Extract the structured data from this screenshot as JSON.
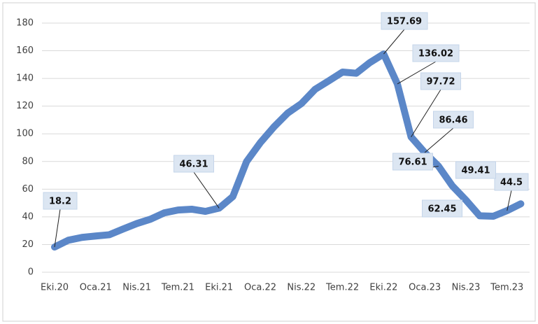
{
  "chart_data": {
    "type": "line",
    "categories": [
      "Eki.20",
      null,
      null,
      "Oca.21",
      null,
      null,
      "Nis.21",
      null,
      null,
      "Tem.21",
      null,
      null,
      "Eki.21",
      null,
      null,
      "Oca.22",
      null,
      null,
      "Nis.22",
      null,
      null,
      "Tem.22",
      null,
      null,
      "Eki.22",
      null,
      null,
      "Oca.23",
      null,
      null,
      "Nis.23",
      null,
      null,
      "Tem.23",
      null
    ],
    "values": [
      18.2,
      23.11,
      25.15,
      26.16,
      27.09,
      31.2,
      35.17,
      38.33,
      42.89,
      44.92,
      45.52,
      43.96,
      46.31,
      54.62,
      79.89,
      93.53,
      105.01,
      114.97,
      121.82,
      132.16,
      138.31,
      144.61,
      143.75,
      151.5,
      157.69,
      136.02,
      97.72,
      86.46,
      76.61,
      62.45,
      52.11,
      40.76,
      40.42,
      44.5,
      49.41
    ],
    "value_labels": [
      "18.2",
      null,
      null,
      null,
      null,
      null,
      null,
      null,
      null,
      null,
      null,
      null,
      "46.31",
      null,
      null,
      null,
      null,
      null,
      null,
      null,
      null,
      null,
      null,
      null,
      "157.69",
      "136.02",
      "97.72",
      "86.46",
      "76.61",
      "62.45",
      null,
      null,
      null,
      "44.5",
      "49.41"
    ],
    "color": "#5b87c8",
    "ylim": [
      0,
      180
    ],
    "yticks": [
      0,
      20,
      40,
      60,
      80,
      100,
      120,
      140,
      160,
      180
    ],
    "grid": true
  }
}
